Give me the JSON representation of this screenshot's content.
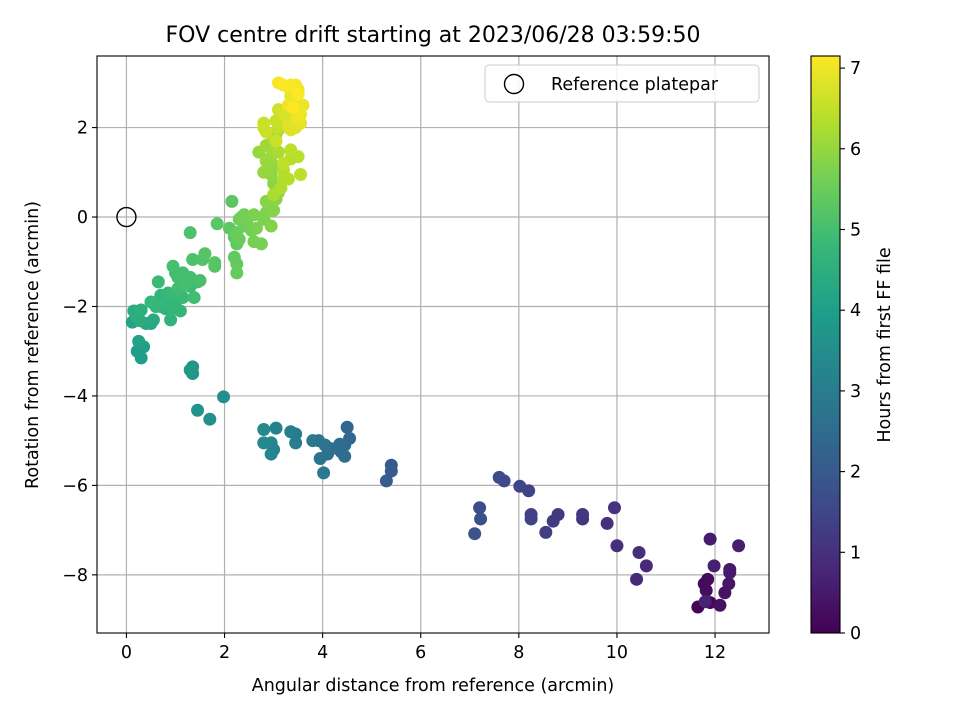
{
  "chart_data": {
    "type": "scatter",
    "title": "FOV centre drift starting at 2023/06/28 03:59:50",
    "xlabel": "Angular distance from reference (arcmin)",
    "ylabel": "Rotation from reference (arcmin)",
    "xlim": [
      -0.6,
      13.1
    ],
    "ylim": [
      -9.3,
      3.6
    ],
    "xticks": [
      "0",
      "2",
      "4",
      "6",
      "8",
      "10",
      "12"
    ],
    "yticks": [
      "−8",
      "−6",
      "−4",
      "−2",
      "0",
      "2"
    ],
    "grid": true,
    "legend": {
      "placement": "top-right",
      "entries": [
        "Reference platepar"
      ]
    },
    "reference_point": {
      "x": 0,
      "y": 0,
      "marker": "open-circle",
      "label": "Reference platepar"
    },
    "colorbar": {
      "label": "Hours from first FF file",
      "range": [
        0,
        7.15
      ],
      "ticks": [
        "0",
        "1",
        "2",
        "3",
        "4",
        "5",
        "6",
        "7"
      ],
      "colormap": "viridis",
      "colormap_stops": [
        "#440154",
        "#482878",
        "#3e4a89",
        "#31688e",
        "#26828e",
        "#1f9e89",
        "#35b779",
        "#6ece58",
        "#b5de2b",
        "#fde725"
      ]
    },
    "color_encoding": "hours",
    "points": [
      [
        11.65,
        -8.72,
        0.05
      ],
      [
        11.9,
        -8.62,
        0.1
      ],
      [
        11.78,
        -8.2,
        0.15
      ],
      [
        11.85,
        -8.1,
        0.2
      ],
      [
        11.82,
        -8.35,
        0.25
      ],
      [
        12.1,
        -8.68,
        0.3
      ],
      [
        12.2,
        -8.4,
        0.35
      ],
      [
        12.28,
        -8.2,
        0.4
      ],
      [
        12.3,
        -7.88,
        0.45
      ],
      [
        12.3,
        -7.95,
        0.5
      ],
      [
        11.9,
        -7.2,
        0.55
      ],
      [
        12.48,
        -7.35,
        0.6
      ],
      [
        11.98,
        -7.8,
        0.65
      ],
      [
        11.8,
        -8.6,
        0.7
      ],
      [
        10.4,
        -8.1,
        0.8
      ],
      [
        10.6,
        -7.8,
        0.85
      ],
      [
        10.45,
        -7.5,
        0.9
      ],
      [
        10.0,
        -7.35,
        0.95
      ],
      [
        9.8,
        -6.85,
        1.0
      ],
      [
        9.95,
        -6.5,
        1.05
      ],
      [
        9.3,
        -6.75,
        1.1
      ],
      [
        9.3,
        -6.65,
        1.15
      ],
      [
        8.8,
        -6.65,
        1.2
      ],
      [
        8.7,
        -6.8,
        1.25
      ],
      [
        8.55,
        -7.05,
        1.3
      ],
      [
        8.25,
        -6.65,
        1.35
      ],
      [
        8.25,
        -6.75,
        1.4
      ],
      [
        8.2,
        -6.12,
        1.45
      ],
      [
        8.02,
        -6.02,
        1.5
      ],
      [
        7.7,
        -5.9,
        1.6
      ],
      [
        7.6,
        -5.82,
        1.65
      ],
      [
        7.2,
        -6.5,
        1.7
      ],
      [
        7.22,
        -6.75,
        1.75
      ],
      [
        7.1,
        -7.08,
        1.8
      ],
      [
        5.4,
        -5.55,
        2.0
      ],
      [
        5.4,
        -5.68,
        2.05
      ],
      [
        5.3,
        -5.9,
        2.1
      ],
      [
        4.5,
        -4.7,
        2.3
      ],
      [
        4.55,
        -4.95,
        2.35
      ],
      [
        4.45,
        -5.1,
        2.4
      ],
      [
        4.38,
        -5.25,
        2.45
      ],
      [
        4.45,
        -5.35,
        2.5
      ],
      [
        4.35,
        -5.08,
        2.55
      ],
      [
        4.18,
        -5.18,
        2.6
      ],
      [
        4.1,
        -5.3,
        2.65
      ],
      [
        4.05,
        -5.1,
        2.7
      ],
      [
        3.95,
        -5.4,
        2.75
      ],
      [
        3.92,
        -5.0,
        2.8
      ],
      [
        3.8,
        -5.0,
        2.85
      ],
      [
        4.02,
        -5.72,
        2.9
      ],
      [
        3.45,
        -4.85,
        3.0
      ],
      [
        3.45,
        -5.05,
        3.05
      ],
      [
        3.35,
        -4.8,
        3.1
      ],
      [
        3.05,
        -4.72,
        3.15
      ],
      [
        3.0,
        -5.2,
        3.2
      ],
      [
        2.95,
        -5.3,
        3.25
      ],
      [
        2.95,
        -5.05,
        3.3
      ],
      [
        2.8,
        -5.05,
        3.35
      ],
      [
        2.8,
        -4.75,
        3.4
      ],
      [
        1.98,
        -4.02,
        3.55
      ],
      [
        1.7,
        -4.52,
        3.6
      ],
      [
        1.45,
        -4.32,
        3.65
      ],
      [
        1.35,
        -3.35,
        3.7
      ],
      [
        1.35,
        -3.5,
        3.75
      ],
      [
        1.3,
        -3.42,
        3.8
      ],
      [
        0.3,
        -3.15,
        3.95
      ],
      [
        0.22,
        -3.0,
        4.0
      ],
      [
        0.35,
        -2.9,
        4.05
      ],
      [
        0.25,
        -2.78,
        4.1
      ],
      [
        0.12,
        -2.35,
        4.15
      ],
      [
        0.25,
        -2.1,
        4.2
      ],
      [
        0.4,
        -2.38,
        4.25
      ],
      [
        0.5,
        -2.38,
        4.3
      ],
      [
        0.55,
        -2.3,
        4.35
      ],
      [
        0.28,
        -2.32,
        4.4
      ],
      [
        0.22,
        -2.25,
        4.45
      ],
      [
        0.15,
        -2.1,
        4.45
      ],
      [
        0.3,
        -2.08,
        4.5
      ],
      [
        0.7,
        -2.0,
        4.55
      ],
      [
        0.8,
        -2.05,
        4.6
      ],
      [
        0.9,
        -2.3,
        4.65
      ],
      [
        0.78,
        -2.0,
        4.6
      ],
      [
        0.9,
        -1.95,
        4.65
      ],
      [
        1.0,
        -1.9,
        4.7
      ],
      [
        0.7,
        -1.75,
        4.7
      ],
      [
        0.75,
        -1.95,
        4.72
      ],
      [
        0.95,
        -2.05,
        4.75
      ],
      [
        1.1,
        -2.1,
        4.75
      ],
      [
        0.6,
        -2.0,
        4.78
      ],
      [
        0.5,
        -1.9,
        4.8
      ],
      [
        0.85,
        -1.7,
        4.8
      ],
      [
        0.95,
        -1.72,
        4.8
      ],
      [
        1.15,
        -1.8,
        4.82
      ],
      [
        1.2,
        -1.5,
        4.85
      ],
      [
        1.3,
        -1.55,
        4.85
      ],
      [
        1.1,
        -1.58,
        4.88
      ],
      [
        0.65,
        -1.45,
        4.85
      ],
      [
        1.05,
        -1.6,
        4.9
      ],
      [
        1.3,
        -1.4,
        4.9
      ],
      [
        1.45,
        -1.45,
        4.92
      ],
      [
        1.38,
        -1.8,
        4.95
      ],
      [
        1.0,
        -1.25,
        4.95
      ],
      [
        1.05,
        -1.35,
        4.97
      ],
      [
        1.15,
        -1.25,
        4.98
      ],
      [
        1.3,
        -1.35,
        5.0
      ],
      [
        0.95,
        -1.1,
        5.0
      ],
      [
        1.2,
        -1.5,
        5.02
      ],
      [
        1.5,
        -1.42,
        5.05
      ],
      [
        1.3,
        -0.35,
        5.1
      ],
      [
        1.35,
        -0.95,
        5.12
      ],
      [
        1.55,
        -0.95,
        5.15
      ],
      [
        1.6,
        -0.82,
        5.2
      ],
      [
        1.8,
        -1.1,
        5.22
      ],
      [
        1.8,
        -1.02,
        5.25
      ],
      [
        1.85,
        -0.15,
        5.28
      ],
      [
        2.15,
        0.35,
        5.3
      ],
      [
        2.1,
        -0.25,
        5.32
      ],
      [
        2.2,
        -0.45,
        5.35
      ],
      [
        2.25,
        -0.6,
        5.38
      ],
      [
        2.2,
        -0.9,
        5.4
      ],
      [
        2.25,
        -1.05,
        5.42
      ],
      [
        2.25,
        -1.25,
        5.45
      ],
      [
        2.3,
        -0.5,
        5.48
      ],
      [
        2.25,
        -0.35,
        5.5
      ],
      [
        2.4,
        -0.2,
        5.52
      ],
      [
        2.3,
        -0.05,
        5.55
      ],
      [
        2.4,
        0.05,
        5.58
      ],
      [
        2.45,
        -0.1,
        5.6
      ],
      [
        2.35,
        0.0,
        5.62
      ],
      [
        2.55,
        -0.3,
        5.62
      ],
      [
        2.6,
        -0.55,
        5.65
      ],
      [
        2.75,
        -0.6,
        5.65
      ],
      [
        2.65,
        -0.25,
        5.68
      ],
      [
        2.6,
        0.05,
        5.7
      ],
      [
        2.8,
        -0.05,
        5.72
      ],
      [
        2.85,
        0.1,
        5.75
      ],
      [
        2.95,
        0.25,
        5.78
      ],
      [
        2.95,
        -0.2,
        5.8
      ],
      [
        3.0,
        0.15,
        5.82
      ],
      [
        2.85,
        0.35,
        5.85
      ],
      [
        3.05,
        0.4,
        5.88
      ],
      [
        3.1,
        0.55,
        5.9
      ],
      [
        3.0,
        0.75,
        5.92
      ],
      [
        2.95,
        0.95,
        5.95
      ],
      [
        3.0,
        1.15,
        5.98
      ],
      [
        2.7,
        1.45,
        6.0
      ],
      [
        2.8,
        1.0,
        6.02
      ],
      [
        2.85,
        1.25,
        6.05
      ],
      [
        2.95,
        1.35,
        6.08
      ],
      [
        2.85,
        1.6,
        6.1
      ],
      [
        3.0,
        1.55,
        6.12
      ],
      [
        3.05,
        1.85,
        6.15
      ],
      [
        3.0,
        1.75,
        6.18
      ],
      [
        3.1,
        1.95,
        6.2
      ],
      [
        3.1,
        1.45,
        6.22
      ],
      [
        3.0,
        0.5,
        6.25
      ],
      [
        3.15,
        0.65,
        6.28
      ],
      [
        3.2,
        0.85,
        6.3
      ],
      [
        3.2,
        1.05,
        6.32
      ],
      [
        3.3,
        0.85,
        6.35
      ],
      [
        3.35,
        1.3,
        6.38
      ],
      [
        3.5,
        1.35,
        6.4
      ],
      [
        3.35,
        1.5,
        6.42
      ],
      [
        3.55,
        0.95,
        6.45
      ],
      [
        3.2,
        1.2,
        6.48
      ],
      [
        3.1,
        2.0,
        6.5
      ],
      [
        3.2,
        2.05,
        6.52
      ],
      [
        3.05,
        2.15,
        6.55
      ],
      [
        2.8,
        2.1,
        6.55
      ],
      [
        2.8,
        2.0,
        6.58
      ],
      [
        2.85,
        1.9,
        6.6
      ],
      [
        3.05,
        1.7,
        6.6
      ],
      [
        3.1,
        2.4,
        6.65
      ],
      [
        3.3,
        2.2,
        6.68
      ],
      [
        3.2,
        2.3,
        6.7
      ],
      [
        3.35,
        2.4,
        6.72
      ],
      [
        3.45,
        2.35,
        6.75
      ],
      [
        3.4,
        2.1,
        6.75
      ],
      [
        3.45,
        2.0,
        6.78
      ],
      [
        3.35,
        1.95,
        6.8
      ],
      [
        3.3,
        2.05,
        6.82
      ],
      [
        3.45,
        2.2,
        6.85
      ],
      [
        3.55,
        2.1,
        6.85
      ],
      [
        3.5,
        2.55,
        6.88
      ],
      [
        3.4,
        2.6,
        6.9
      ],
      [
        3.35,
        2.7,
        6.92
      ],
      [
        3.5,
        2.85,
        6.95
      ],
      [
        3.6,
        2.5,
        6.95
      ],
      [
        3.55,
        2.3,
        6.98
      ],
      [
        3.5,
        2.2,
        7.0
      ],
      [
        3.3,
        2.5,
        7.0
      ],
      [
        3.3,
        2.9,
        7.02
      ],
      [
        3.45,
        2.95,
        7.05
      ],
      [
        3.35,
        2.95,
        7.08
      ],
      [
        3.1,
        3.0,
        7.1
      ],
      [
        3.2,
        2.95,
        7.12
      ],
      [
        3.5,
        2.75,
        7.12
      ],
      [
        3.4,
        2.45,
        7.15
      ]
    ]
  }
}
